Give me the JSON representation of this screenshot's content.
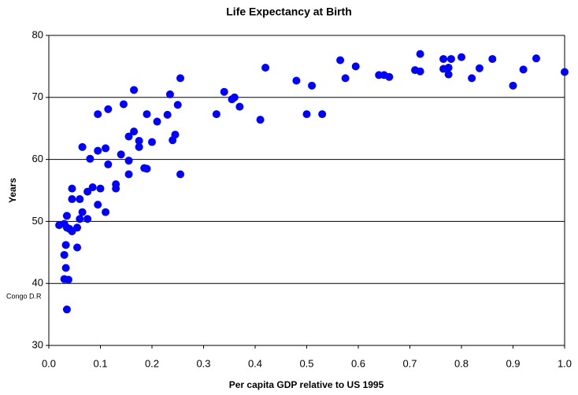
{
  "chart_data": {
    "type": "scatter",
    "title": "Life Expectancy at Birth",
    "x_label": "Per capita GDP relative to US 1995",
    "y_label": "Years",
    "annotation": "Congo D.R",
    "color": "#0000ff",
    "grid": true,
    "xlim": [
      0,
      1
    ],
    "ylim": [
      30,
      80
    ],
    "xticks": [
      {
        "value": 0,
        "label": "0.0"
      },
      0.1,
      0.2,
      0.3,
      0.4,
      0.5,
      0.6,
      0.7,
      0.8,
      0.9,
      {
        "value": 1,
        "label": "1.0"
      }
    ],
    "yticks": [
      30,
      40,
      50,
      60,
      70,
      80
    ],
    "x": [
      0.255,
      0.235,
      0.25,
      0.23,
      0.245,
      0.24,
      0.255,
      0.21,
      0.2,
      0.19,
      0.19,
      0.185,
      0.175,
      0.175,
      0.165,
      0.165,
      0.155,
      0.155,
      0.155,
      0.14,
      0.145,
      0.13,
      0.13,
      0.115,
      0.115,
      0.11,
      0.11,
      0.095,
      0.095,
      0.1,
      0.095,
      0.085,
      0.08,
      0.075,
      0.075,
      0.065,
      0.065,
      0.06,
      0.06,
      0.055,
      0.055,
      0.045,
      0.045,
      0.045,
      0.04,
      0.035,
      0.035,
      0.02,
      0.03,
      0.03,
      0.033,
      0.033,
      0.03,
      0.038,
      0.035,
      0.325,
      0.34,
      0.355,
      0.36,
      0.37,
      0.41,
      0.42,
      0.48,
      0.5,
      0.51,
      0.53,
      0.565,
      0.575,
      0.595,
      0.64,
      0.65,
      0.66,
      0.71,
      0.72,
      0.72,
      0.765,
      0.765,
      0.775,
      0.775,
      0.78,
      0.8,
      0.82,
      0.835,
      0.86,
      0.9,
      0.92,
      0.945,
      1.0
    ],
    "values": [
      73.1,
      70.5,
      68.8,
      67.2,
      64.0,
      63.1,
      57.6,
      66.1,
      62.8,
      67.3,
      58.5,
      58.6,
      62.0,
      63.0,
      64.5,
      71.2,
      63.7,
      59.8,
      57.6,
      60.8,
      68.9,
      55.3,
      56.0,
      68.1,
      59.2,
      61.8,
      51.5,
      67.3,
      61.4,
      55.3,
      52.7,
      55.5,
      60.1,
      54.8,
      50.4,
      62.0,
      51.5,
      50.4,
      53.6,
      49.0,
      45.8,
      55.3,
      53.6,
      48.4,
      48.8,
      50.9,
      49.0,
      49.4,
      49.6,
      44.6,
      46.2,
      42.5,
      40.7,
      40.6,
      35.8,
      67.3,
      70.9,
      69.7,
      70.0,
      68.5,
      66.4,
      74.8,
      72.7,
      67.3,
      71.9,
      67.3,
      76.0,
      73.1,
      75.0,
      73.6,
      73.6,
      73.3,
      74.4,
      74.2,
      77.0,
      76.2,
      74.6,
      74.8,
      73.7,
      76.2,
      76.5,
      73.1,
      74.7,
      76.2,
      71.9,
      74.5,
      76.3,
      74.1
    ]
  }
}
